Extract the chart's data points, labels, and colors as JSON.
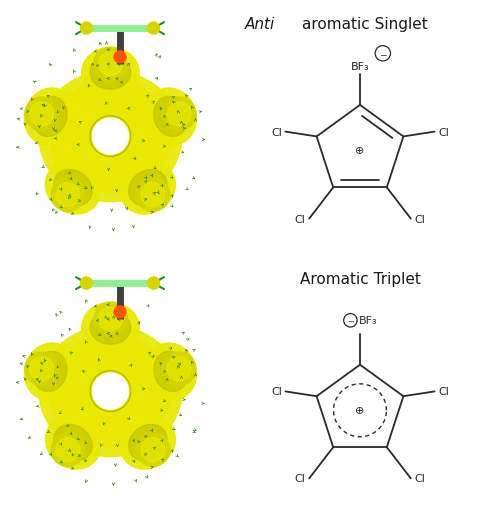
{
  "title1_italic": "Anti",
  "title1_normal": "aromatic Singlet",
  "title2": "Aromatic Triplet",
  "bg_color": "#ffffff",
  "text_color": "#1a1a1a",
  "bond_color": "#2a2a2a",
  "font_size_title": 11,
  "font_size_label": 8,
  "font_size_symbol": 7,
  "mo_bg": "#ffffff",
  "yellow_main": "#e8e800",
  "yellow_lobe": "#cccc00",
  "green_arrow": "#3a8a1a",
  "green_stick": "#90EE90",
  "orange_stick": "#FF6600",
  "dark_stick": "#404040"
}
